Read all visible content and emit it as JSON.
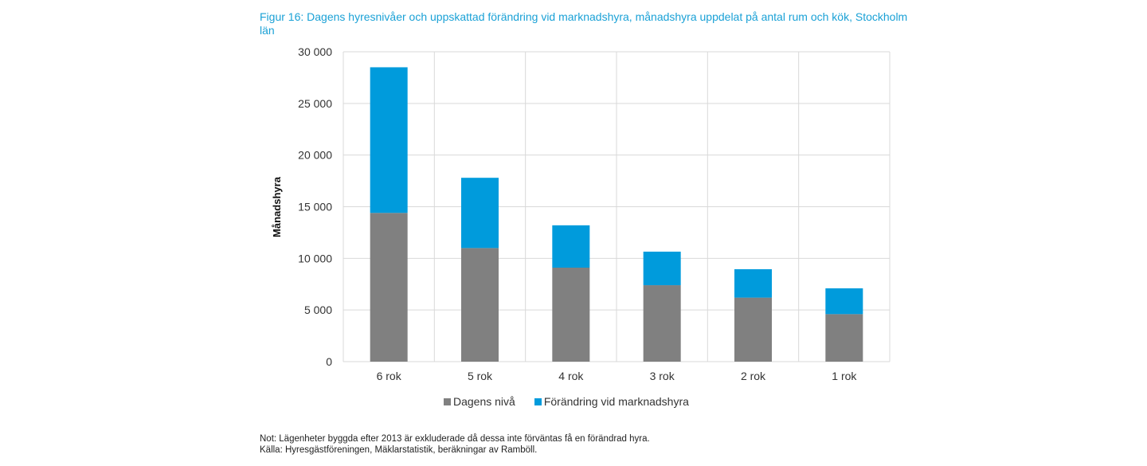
{
  "chart_data": {
    "type": "bar",
    "stacked": true,
    "title": "Figur 16: Dagens hyresnivåer och uppskattad förändring vid marknadshyra, månadshyra uppdelat på antal rum och kök, Stockholm län",
    "xlabel": "",
    "ylabel": "Månadshyra",
    "ylim": [
      0,
      30000
    ],
    "yticks": [
      0,
      5000,
      10000,
      15000,
      20000,
      25000,
      30000
    ],
    "ytick_labels": [
      "0",
      "5 000",
      "10 000",
      "15 000",
      "20 000",
      "25 000",
      "30 000"
    ],
    "grid": true,
    "categories": [
      "6 rok",
      "5 rok",
      "4 rok",
      "3 rok",
      "2 rok",
      "1  rok"
    ],
    "series": [
      {
        "name": "Dagens nivå",
        "color": "#808080",
        "values": [
          14400,
          11000,
          9100,
          7400,
          6200,
          4600
        ]
      },
      {
        "name": "Förändring vid marknadshyra",
        "color": "#009bdc",
        "values": [
          14100,
          6800,
          4100,
          3250,
          2750,
          2500
        ]
      }
    ],
    "legend_position": "bottom"
  },
  "notes": {
    "note": "Not: Lägenheter byggda efter 2013 är exkluderade då dessa inte förväntas få en förändrad hyra.",
    "source": "Källa: Hyresgästföreningen, Mäklarstatistik, beräkningar av Ramböll."
  }
}
